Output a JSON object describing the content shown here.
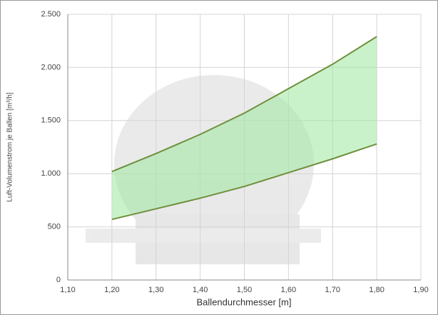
{
  "chart_data": {
    "type": "band",
    "xlabel": "Ballendurchmesser [m]",
    "ylabel": "Luft-Volumenstrom je Ballen [m³/h]",
    "x": [
      1.2,
      1.3,
      1.4,
      1.5,
      1.6,
      1.7,
      1.8
    ],
    "series": [
      {
        "color": "#6f8f3c",
        "values": [
          1020,
          1190,
          1370,
          1570,
          1800,
          2030,
          2290
        ]
      },
      {
        "color": "#6f8f3c",
        "values": [
          570,
          670,
          770,
          880,
          1010,
          1140,
          1280
        ]
      }
    ],
    "fill_color": "#9ee89e",
    "xlim": [
      1.1,
      1.9
    ],
    "xticks": [
      {
        "value": 1.1,
        "label": "1,10"
      },
      {
        "value": 1.2,
        "label": "1,20"
      },
      {
        "value": 1.3,
        "label": "1,30"
      },
      {
        "value": 1.4,
        "label": "1,40"
      },
      {
        "value": 1.5,
        "label": "1,50"
      },
      {
        "value": 1.6,
        "label": "1,60"
      },
      {
        "value": 1.7,
        "label": "1,70"
      },
      {
        "value": 1.8,
        "label": "1,80"
      },
      {
        "value": 1.9,
        "label": "1,90"
      }
    ],
    "ylim": [
      0,
      2500
    ],
    "yticks": [
      0,
      500,
      {
        "value": 1000,
        "label": "1.000"
      },
      {
        "value": 1500,
        "label": "1.500"
      },
      {
        "value": 2000,
        "label": "2.000"
      },
      {
        "value": 2500,
        "label": "2.500"
      }
    ],
    "grid": true
  }
}
